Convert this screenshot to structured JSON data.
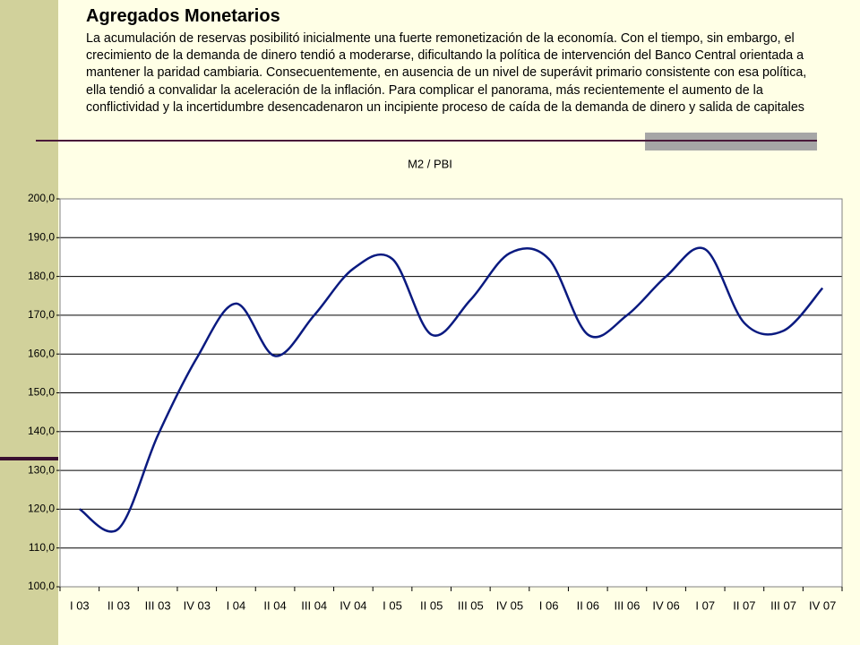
{
  "title": "Agregados Monetarios",
  "text": "La acumulación de reservas posibilitó inicialmente una fuerte remonetización de la economía. Con el tiempo, sin embargo, el crecimiento de la demanda de dinero tendió a moderarse, dificultando la política de intervención del Banco Central orientada a mantener la paridad cambiaria. Consecuentemente, en ausencia de un nivel de superávit primario consistente con esa política, ella tendió a convalidar la aceleración de la inflación. Para complicar el panorama, más recientemente el aumento de la conflictividad y la incertidumbre desencadenaron un incipiente proceso de caída de la demanda de dinero y salida de capitales",
  "chart_data": {
    "type": "line",
    "title": "M2 / PBI",
    "categories": [
      "I 03",
      "II 03",
      "III 03",
      "IV 03",
      "I 04",
      "II 04",
      "III 04",
      "IV 04",
      "I 05",
      "II 05",
      "III 05",
      "IV 05",
      "I 06",
      "II 06",
      "III 06",
      "IV 06",
      "I 07",
      "II 07",
      "III 07",
      "IV 07"
    ],
    "series": [
      {
        "name": "M2 / PBI",
        "color": "#0a1a80",
        "values": [
          120,
          115,
          139,
          159,
          173,
          159.5,
          170,
          182,
          184.5,
          165,
          174,
          186,
          184.5,
          165,
          170,
          180,
          187,
          168,
          166,
          177
        ]
      }
    ],
    "ylim": [
      100,
      200
    ],
    "yticks": [
      {
        "value": 100,
        "label": "100,0"
      },
      {
        "value": 110,
        "label": "110,0"
      },
      {
        "value": 120,
        "label": "120,0"
      },
      {
        "value": 130,
        "label": "130,0"
      },
      {
        "value": 140,
        "label": "140,0"
      },
      {
        "value": 150,
        "label": "150,0"
      },
      {
        "value": 160,
        "label": "160,0"
      },
      {
        "value": 170,
        "label": "170,0"
      },
      {
        "value": 180,
        "label": "180,0"
      },
      {
        "value": 190,
        "label": "190,0"
      },
      {
        "value": 200,
        "label": "200,0"
      }
    ],
    "grid": true
  }
}
